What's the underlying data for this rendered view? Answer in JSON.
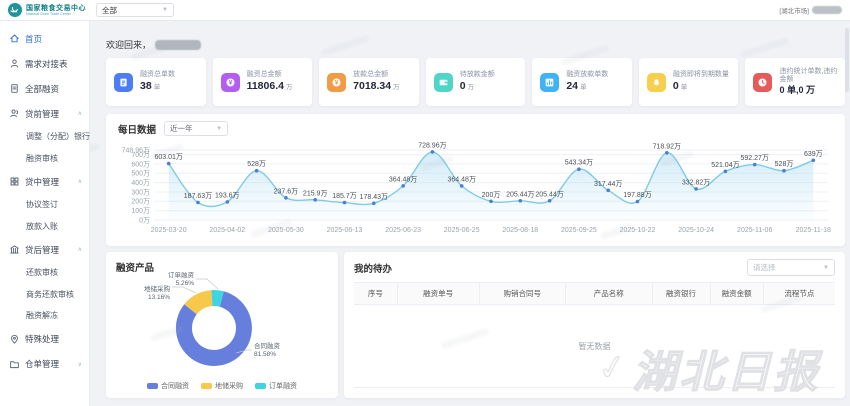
{
  "header": {
    "brand": {
      "title": "国家粮食交易中心",
      "subtitle": "National Grain Trade Center"
    },
    "market_select": "全部",
    "user_market": "[湖北市场]"
  },
  "sidebar": {
    "items": [
      {
        "label": "首页",
        "icon": "home",
        "active": true
      },
      {
        "label": "需求对接表",
        "icon": "user"
      },
      {
        "label": "全部融资",
        "icon": "doc"
      },
      {
        "label": "贷前管理",
        "icon": "users",
        "expandable": true,
        "expanded": true,
        "children": [
          "调整（分配）银行",
          "融资审核"
        ]
      },
      {
        "label": "贷中管理",
        "icon": "grid",
        "expandable": true,
        "expanded": true,
        "children": [
          "协议签订",
          "放款入账"
        ]
      },
      {
        "label": "贷后管理",
        "icon": "bank",
        "expandable": true,
        "expanded": true,
        "children": [
          "还款审核",
          "商务还款审核",
          "融资解冻"
        ]
      },
      {
        "label": "特殊处理",
        "icon": "pin"
      },
      {
        "label": "仓单管理",
        "icon": "folder",
        "expandable": true,
        "expanded": false,
        "children": []
      }
    ]
  },
  "welcome": {
    "text": "欢迎回来，"
  },
  "stat_cards": [
    {
      "label": "融资总单数",
      "value": "38",
      "unit": "单",
      "icon": "file",
      "color": "#4e7df2"
    },
    {
      "label": "融资总金额",
      "value": "11806.4",
      "unit": "万",
      "icon": "money",
      "color": "#b45ef0"
    },
    {
      "label": "放款总金额",
      "value": "7018.34",
      "unit": "万",
      "icon": "coin",
      "color": "#f09b45"
    },
    {
      "label": "待放款金额",
      "value": "0",
      "unit": "万",
      "icon": "wallet",
      "color": "#4fd6c8"
    },
    {
      "label": "融资放款单数",
      "value": "24",
      "unit": "单",
      "icon": "chart",
      "color": "#3fb3f6"
    },
    {
      "label": "融资即将到期数量",
      "value": "0",
      "unit": "单",
      "icon": "bell",
      "color": "#f6cf4d"
    },
    {
      "label": "违约统计单数,违约金额",
      "value": "0 单,0 万",
      "unit": "",
      "icon": "clock",
      "color": "#e45b5b"
    }
  ],
  "chart_data": [
    {
      "type": "line",
      "title": "每日数据",
      "range_select": "近一年",
      "ylim": [
        0,
        748.96
      ],
      "grid": true,
      "line_color": "#7fcbe8",
      "marker_color": "#4a7ed2",
      "y_ticks": [
        {
          "v": 0,
          "label": "0万"
        },
        {
          "v": 100,
          "label": "100万"
        },
        {
          "v": 200,
          "label": "200万"
        },
        {
          "v": 300,
          "label": "300万"
        },
        {
          "v": 400,
          "label": "400万"
        },
        {
          "v": 500,
          "label": "500万"
        },
        {
          "v": 600,
          "label": "600万"
        },
        {
          "v": 700,
          "label": "700万"
        },
        {
          "v": 748.96,
          "label": "748.96万"
        }
      ],
      "x_ticks": [
        {
          "i": 0,
          "label": "2025-03-20"
        },
        {
          "i": 2,
          "label": "2025-04-02"
        },
        {
          "i": 4,
          "label": "2025-05-30"
        },
        {
          "i": 6,
          "label": "2025-06-13"
        },
        {
          "i": 8,
          "label": "2025-06-23"
        },
        {
          "i": 10,
          "label": "2025-06-25"
        },
        {
          "i": 12,
          "label": "2025-08-18"
        },
        {
          "i": 14,
          "label": "2025-09-25"
        },
        {
          "i": 16,
          "label": "2025-10-22"
        },
        {
          "i": 18,
          "label": "2025-10-24"
        },
        {
          "i": 20,
          "label": "2025-11-06"
        },
        {
          "i": 22,
          "label": "2025-11-18"
        }
      ],
      "values": [
        603.01,
        187.63,
        193.6,
        528,
        237.6,
        215.9,
        185.7,
        178.43,
        364.48,
        728.96,
        364.48,
        200,
        205.44,
        205.44,
        543.34,
        317.44,
        197.88,
        718.92,
        332.82,
        521.04,
        592.27,
        528,
        639
      ],
      "point_labels": [
        "603.01万",
        "187.63万",
        "193.6万",
        "528万",
        "237.6万",
        "215.9万",
        "185.7万",
        "178.43万",
        "364.48万",
        "728.96万",
        "364.48万",
        "200万",
        "205.44万",
        "205.44万",
        "543.34万",
        "317.44万",
        "197.88万",
        "718.92万",
        "332.82万",
        "521.04万",
        "592.27万",
        "528万",
        "639万"
      ]
    },
    {
      "type": "pie",
      "title": "融资产品",
      "legend_position": "bottom",
      "slices": [
        {
          "name": "合同融资",
          "pct": 81.58,
          "color": "#667fdd"
        },
        {
          "name": "地储采购",
          "pct": 13.16,
          "color": "#f6c84b"
        },
        {
          "name": "订单融资",
          "pct": 5.26,
          "color": "#3ed4e0"
        }
      ]
    }
  ],
  "todo_panel": {
    "title": "我的待办",
    "filter_placeholder": "请选择",
    "columns": [
      "序号",
      "融资单号",
      "购销合同号",
      "产品名称",
      "融资银行",
      "融资金额",
      "流程节点"
    ],
    "empty_text": "暂无数据"
  },
  "watermark": {
    "brand": "湖北日报"
  }
}
